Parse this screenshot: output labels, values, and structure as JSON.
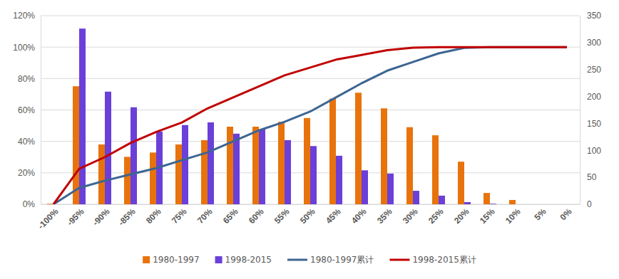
{
  "chart_data": {
    "type": "bar",
    "categories": [
      "-100%",
      "-95%",
      "-90%",
      "-85%",
      "80%",
      "75%",
      "70%",
      "65%",
      "60%",
      "55%",
      "50%",
      "45%",
      "40%",
      "35%",
      "30%",
      "25%",
      "20%",
      "15%",
      "10%",
      "5%",
      "0%"
    ],
    "series": [
      {
        "name": "1980-1997",
        "type": "bar",
        "axis": "y2",
        "color": "#e8730c",
        "values": [
          1,
          219,
          111,
          88,
          96,
          111,
          119,
          144,
          144,
          153,
          160,
          196,
          207,
          178,
          143,
          128,
          79,
          21,
          8,
          0,
          0
        ]
      },
      {
        "name": "1998-2015",
        "type": "bar",
        "axis": "y2",
        "color": "#6a40d8",
        "values": [
          0,
          326,
          209,
          180,
          135,
          147,
          152,
          131,
          139,
          119,
          108,
          90,
          63,
          57,
          25,
          16,
          4,
          1,
          0,
          0,
          0
        ]
      },
      {
        "name": "1980-1997累计",
        "type": "line",
        "color": "#3d6592",
        "values": [
          0,
          10.4,
          15,
          19,
          23,
          28,
          33,
          40,
          47,
          52.5,
          59,
          68,
          77,
          85,
          90.5,
          96,
          99.5,
          100,
          100,
          100,
          100
        ]
      },
      {
        "name": "1998-2015累计",
        "type": "line",
        "color": "#c00000",
        "values": [
          0,
          22.6,
          30,
          39,
          46,
          52,
          61,
          68,
          75,
          82,
          87,
          92,
          95,
          98,
          99.6,
          100,
          100,
          100,
          100,
          100,
          100
        ]
      }
    ],
    "ylim": [
      0,
      120
    ],
    "yticks": [
      {
        "value": 0,
        "label": "0%"
      },
      {
        "value": 20,
        "label": "20%"
      },
      {
        "value": 40,
        "label": "40%"
      },
      {
        "value": 60,
        "label": "60%"
      },
      {
        "value": 80,
        "label": "80%"
      },
      {
        "value": 100,
        "label": "100%"
      },
      {
        "value": 120,
        "label": "120%"
      }
    ],
    "y2lim": [
      0,
      350
    ],
    "y2ticks": [
      0,
      50,
      100,
      150,
      200,
      250,
      300,
      350
    ],
    "grid": true,
    "legend": "bottom"
  }
}
